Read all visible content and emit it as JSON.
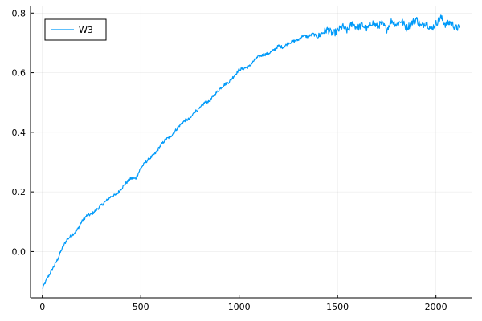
{
  "chart_data": {
    "type": "line",
    "title": "",
    "xlabel": "",
    "ylabel": "",
    "xlim": [
      -60,
      2185
    ],
    "ylim": [
      -0.155,
      0.825
    ],
    "x_ticks": [
      0,
      500,
      1000,
      1500,
      2000
    ],
    "y_ticks": [
      0.0,
      0.2,
      0.4,
      0.6,
      0.8
    ],
    "x_tick_labels": [
      "0",
      "500",
      "1000",
      "1500",
      "2000"
    ],
    "y_tick_labels": [
      "0.0",
      "0.2",
      "0.4",
      "0.6",
      "0.8"
    ],
    "grid": true,
    "legend_position": "top-left",
    "series": [
      {
        "name": "W3",
        "color": "#009af9",
        "x": [
          0,
          25,
          50,
          75,
          100,
          125,
          150,
          175,
          200,
          225,
          250,
          275,
          300,
          325,
          350,
          375,
          400,
          425,
          450,
          475,
          500,
          525,
          550,
          575,
          600,
          625,
          650,
          675,
          700,
          725,
          750,
          775,
          800,
          825,
          850,
          875,
          900,
          925,
          950,
          975,
          1000,
          1025,
          1050,
          1075,
          1100,
          1125,
          1150,
          1175,
          1200,
          1225,
          1250,
          1275,
          1300,
          1325,
          1350,
          1375,
          1400,
          1425,
          1450,
          1475,
          1500,
          1525,
          1550,
          1575,
          1600,
          1625,
          1650,
          1675,
          1700,
          1725,
          1750,
          1775,
          1800,
          1825,
          1850,
          1875,
          1900,
          1925,
          1950,
          1975,
          2000,
          2025,
          2050,
          2075,
          2100,
          2120
        ],
        "y": [
          -0.125,
          -0.09,
          -0.06,
          -0.03,
          0.01,
          0.04,
          0.055,
          0.07,
          0.1,
          0.12,
          0.125,
          0.14,
          0.155,
          0.17,
          0.185,
          0.19,
          0.21,
          0.23,
          0.245,
          0.245,
          0.28,
          0.3,
          0.315,
          0.33,
          0.355,
          0.375,
          0.385,
          0.405,
          0.425,
          0.44,
          0.445,
          0.47,
          0.48,
          0.5,
          0.505,
          0.525,
          0.545,
          0.56,
          0.57,
          0.59,
          0.61,
          0.615,
          0.62,
          0.64,
          0.655,
          0.66,
          0.665,
          0.675,
          0.69,
          0.685,
          0.7,
          0.705,
          0.71,
          0.725,
          0.72,
          0.73,
          0.72,
          0.735,
          0.745,
          0.73,
          0.74,
          0.755,
          0.74,
          0.765,
          0.75,
          0.76,
          0.745,
          0.77,
          0.755,
          0.765,
          0.745,
          0.775,
          0.76,
          0.775,
          0.75,
          0.765,
          0.78,
          0.755,
          0.77,
          0.745,
          0.765,
          0.785,
          0.76,
          0.77,
          0.75,
          0.75
        ]
      }
    ]
  }
}
